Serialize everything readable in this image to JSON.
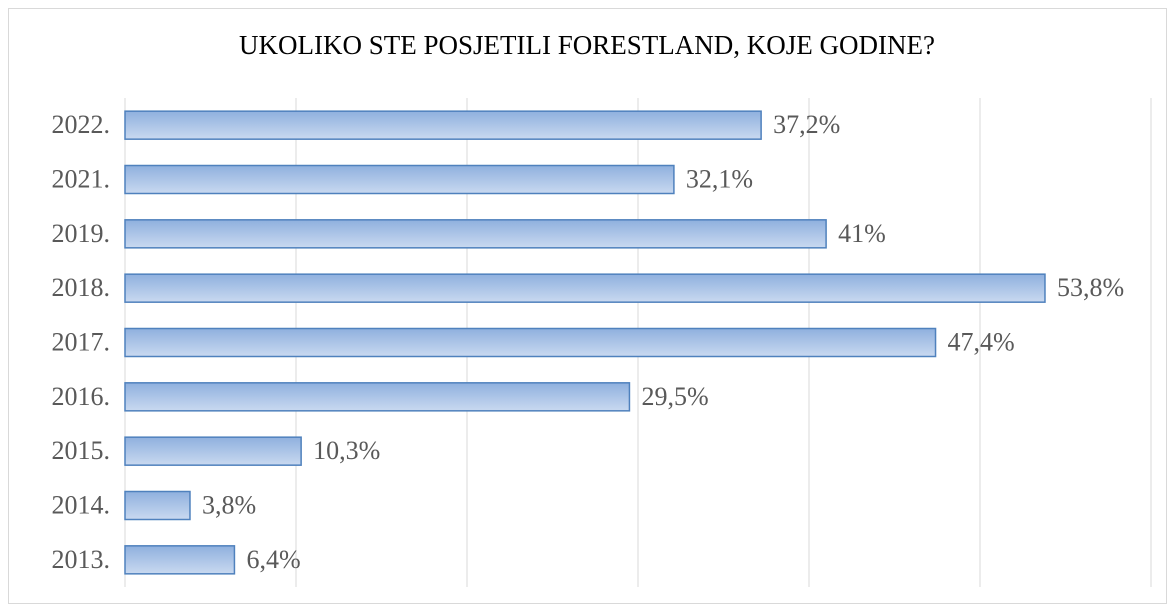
{
  "chart_data": {
    "type": "barh",
    "title": "UKOLIKO STE POSJETILI FORESTLAND, KOJE GODINE?",
    "categories": [
      "2022.",
      "2021.",
      "2019.",
      "2018.",
      "2017.",
      "2016.",
      "2015.",
      "2014.",
      "2013."
    ],
    "values": [
      37.2,
      32.1,
      41,
      53.8,
      47.4,
      29.5,
      10.3,
      3.8,
      6.4
    ],
    "value_labels": [
      "37,2%",
      "32,1%",
      "41%",
      "53,8%",
      "47,4%",
      "29,5%",
      "10,3%",
      "3,8%",
      "6,4%"
    ],
    "color": "#a9c3e8",
    "edge_color": "#4f81bd",
    "xlim": [
      0,
      60
    ],
    "xticks": [
      0,
      10,
      20,
      30,
      40,
      50,
      60
    ],
    "grid": true
  }
}
